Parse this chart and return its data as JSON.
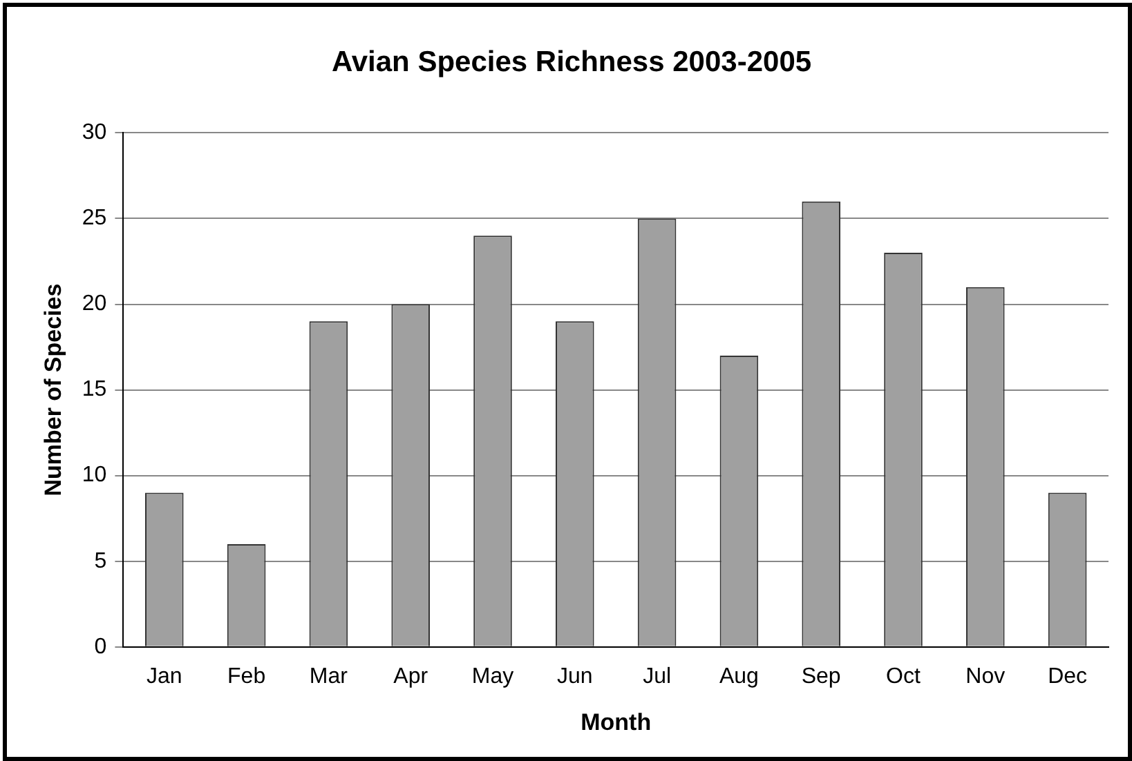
{
  "chart_data": {
    "type": "bar",
    "title": "Avian Species Richness 2003-2005",
    "xlabel": "Month",
    "ylabel": "Number of Species",
    "categories": [
      "Jan",
      "Feb",
      "Mar",
      "Apr",
      "May",
      "Jun",
      "Jul",
      "Aug",
      "Sep",
      "Oct",
      "Nov",
      "Dec"
    ],
    "values": [
      9,
      6,
      19,
      20,
      24,
      19,
      25,
      17,
      26,
      23,
      21,
      9
    ],
    "color": "#a0a0a0",
    "ylim": [
      0,
      30
    ],
    "yticks": [
      0,
      5,
      10,
      15,
      20,
      25,
      30
    ],
    "grid": "y",
    "legend": false
  }
}
